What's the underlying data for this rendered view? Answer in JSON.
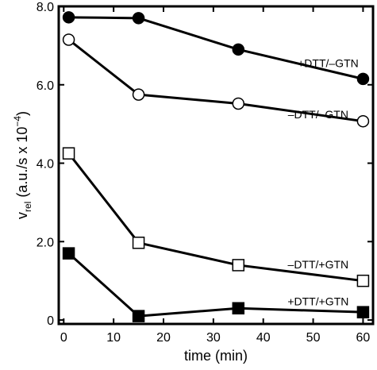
{
  "chart_data": {
    "type": "line",
    "title": "",
    "xlabel": "time (min)",
    "ylabel_main": "v",
    "ylabel_sub": "rel",
    "ylabel_rest": " (a.u./s x 10",
    "ylabel_exp": "−4",
    "ylabel_close": ")",
    "xlim": [
      -1,
      62
    ],
    "ylim": [
      -0.1,
      8.0
    ],
    "x_ticks": [
      0,
      10,
      20,
      30,
      40,
      50,
      60
    ],
    "x_tick_labels": [
      "0",
      "10",
      "20",
      "30",
      "40",
      "50",
      "60"
    ],
    "y_ticks": [
      0,
      2,
      4,
      6,
      8
    ],
    "y_tick_labels": [
      "0",
      "2.0",
      "4.0",
      "6.0",
      "8.0"
    ],
    "grid": false,
    "series": [
      {
        "name": "+DTT/–GTN",
        "marker": "filled-circle",
        "x": [
          1,
          15,
          35,
          60
        ],
        "values": [
          7.72,
          7.7,
          6.9,
          6.15
        ]
      },
      {
        "name": "–DTT/–GTN",
        "marker": "open-circle",
        "x": [
          1,
          15,
          35,
          60
        ],
        "values": [
          7.15,
          5.75,
          5.52,
          5.07
        ]
      },
      {
        "name": "–DTT/+GTN",
        "marker": "open-square",
        "x": [
          1,
          15,
          35,
          60
        ],
        "values": [
          4.25,
          1.97,
          1.4,
          1.0
        ]
      },
      {
        "name": "+DTT/+GTN",
        "marker": "filled-square",
        "x": [
          1,
          15,
          35,
          60
        ],
        "values": [
          1.7,
          0.1,
          0.3,
          0.2
        ]
      }
    ]
  }
}
